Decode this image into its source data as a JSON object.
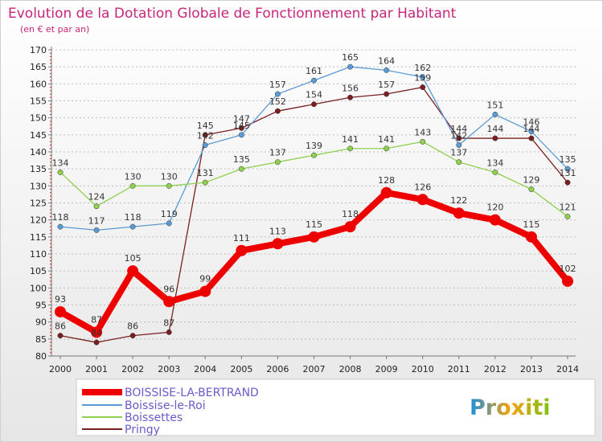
{
  "title": "Evolution de la Dotation Globale de Fonctionnement par Habitant",
  "subtitle": "(en € et par an)",
  "watermark": "Proxiti",
  "chart_data": {
    "type": "line",
    "title": "Evolution de la Dotation Globale de Fonctionnement par Habitant",
    "subtitle": "(en € et par an)",
    "x": [
      "2000",
      "2001",
      "2002",
      "2003",
      "2004",
      "2005",
      "2006",
      "2007",
      "2008",
      "2009",
      "2010",
      "2011",
      "2012",
      "2013",
      "2014"
    ],
    "ylim": [
      80,
      170
    ],
    "yticks": [
      80,
      85,
      90,
      95,
      100,
      105,
      110,
      115,
      120,
      125,
      130,
      135,
      140,
      145,
      150,
      155,
      160,
      165,
      170
    ],
    "grid": "horizontal-dashed",
    "legend": "bottom-left",
    "series": [
      {
        "name": "BOISSISE-LA-BERTRAND",
        "color": "#ee0000",
        "values": [
          93,
          87,
          105,
          96,
          99,
          111,
          113,
          115,
          118,
          128,
          126,
          122,
          120,
          115,
          102
        ]
      },
      {
        "name": "Boissise-le-Roi",
        "color": "#5b9bd5",
        "values": [
          118,
          117,
          118,
          119,
          142,
          145,
          157,
          161,
          165,
          164,
          162,
          142,
          151,
          146,
          135
        ]
      },
      {
        "name": "Boissettes",
        "color": "#8fd14f",
        "values": [
          134,
          124,
          130,
          130,
          131,
          135,
          137,
          139,
          141,
          141,
          143,
          137,
          134,
          129,
          121
        ]
      },
      {
        "name": "Pringy",
        "color": "#7a1f1f",
        "values": [
          86,
          84,
          86,
          87,
          145,
          147,
          152,
          154,
          156,
          157,
          159,
          144,
          144,
          144,
          131
        ]
      }
    ]
  }
}
